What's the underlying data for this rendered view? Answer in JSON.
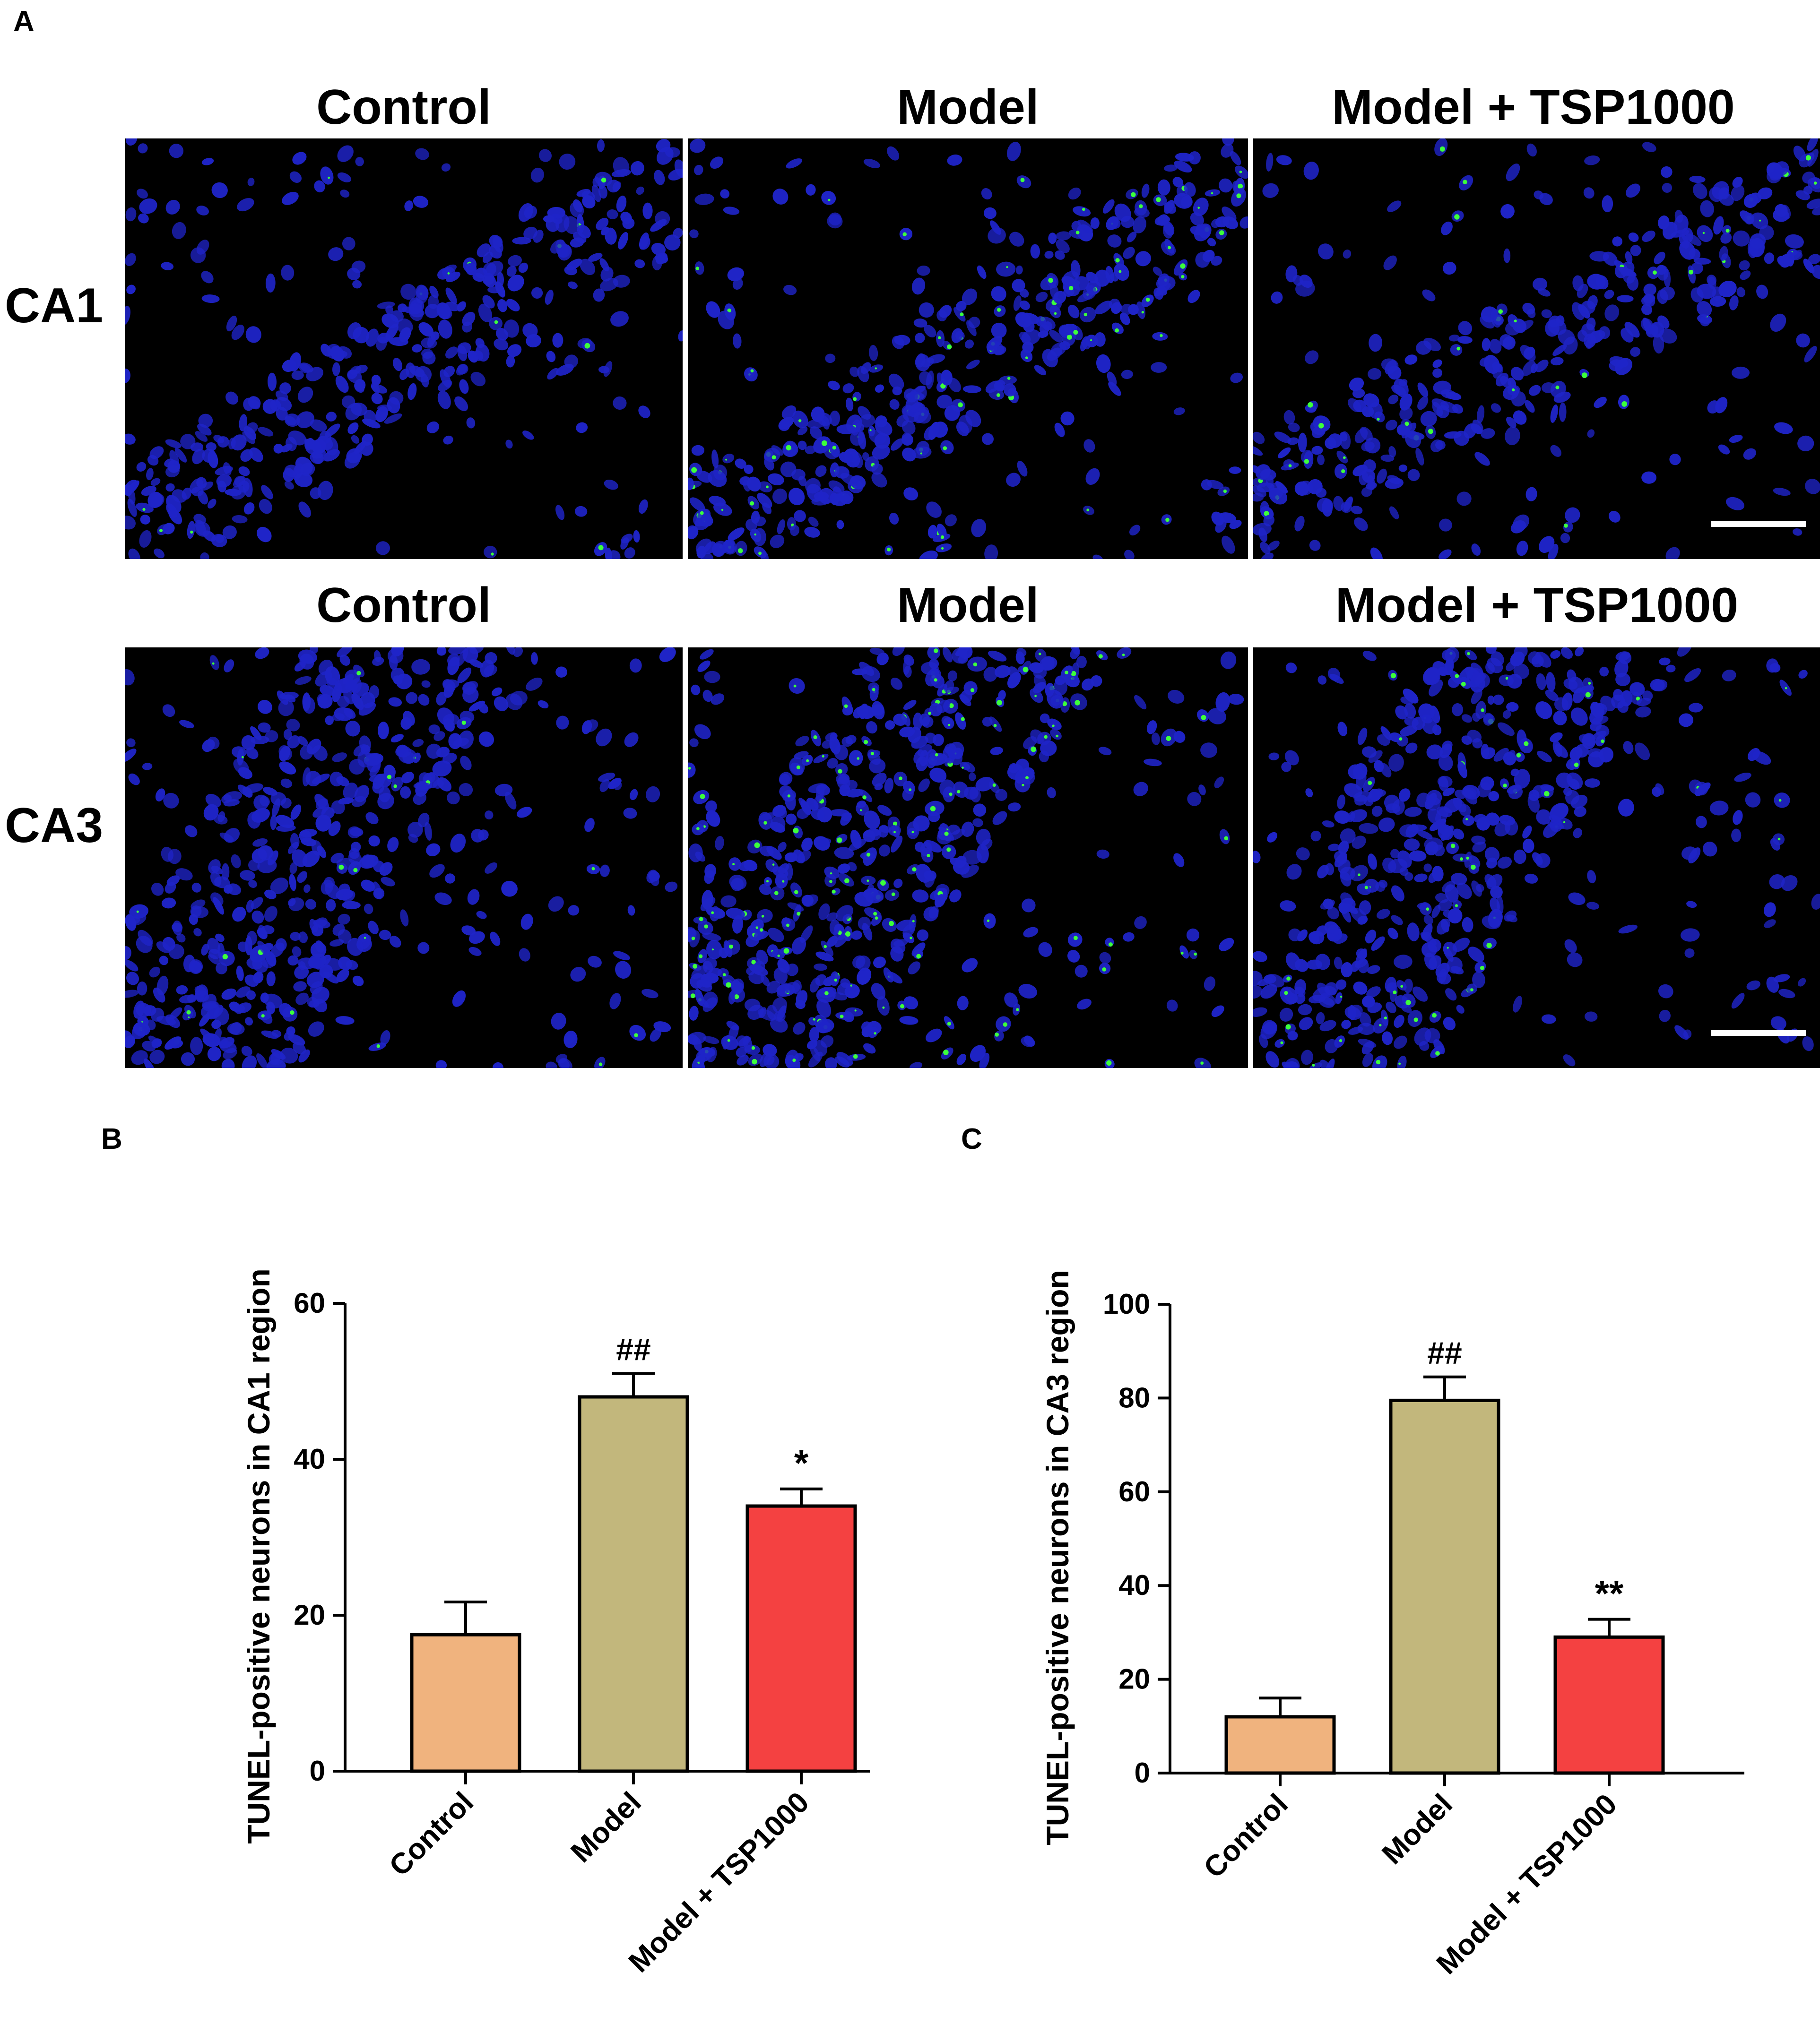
{
  "figure": {
    "panel_labels": [
      "A",
      "B",
      "C"
    ],
    "column_titles_row1": [
      "Control",
      "Model",
      "Model + TSP1000"
    ],
    "column_titles_row2": [
      "Control",
      "Model",
      "Model + TSP1000"
    ],
    "row_labels": [
      "CA1",
      "CA3"
    ],
    "colors": {
      "nuclei": "#1f24c8",
      "tunel": "#3cff3c",
      "scale_bar": "#ffffff",
      "bar_control": "#f0b37e",
      "bar_model": "#c2b77c",
      "bar_tsp": "#f44141"
    }
  },
  "chart_data": [
    {
      "type": "bar",
      "panel": "B",
      "categories": [
        "Control",
        "Model",
        "Model + TSP1000"
      ],
      "values": [
        17.5,
        48,
        34
      ],
      "errors": [
        4.2,
        3,
        2.2
      ],
      "significance": [
        "",
        "##",
        "*"
      ],
      "ylabel": "TUNEL-positive neurons in CA1 region",
      "yticks": [
        0,
        20,
        40,
        60
      ],
      "ylim": [
        0,
        60
      ]
    },
    {
      "type": "bar",
      "panel": "C",
      "categories": [
        "Control",
        "Model",
        "Model + TSP1000"
      ],
      "values": [
        12,
        79.5,
        29
      ],
      "errors": [
        4,
        5,
        3.8
      ],
      "significance": [
        "",
        "##",
        "**"
      ],
      "ylabel": "TUNEL-positive neurons in CA3 region",
      "yticks": [
        0,
        20,
        40,
        60,
        80,
        100
      ],
      "ylim": [
        0,
        100
      ]
    }
  ]
}
